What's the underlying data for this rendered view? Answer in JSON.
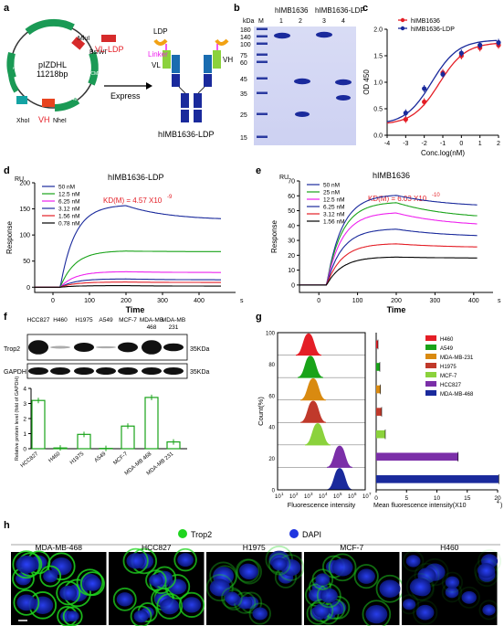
{
  "panels": {
    "a": "a",
    "b": "b",
    "c": "c",
    "d": "d",
    "e": "e",
    "f": "f",
    "g": "g",
    "h": "h"
  },
  "colors": {
    "red": "#e41e26",
    "blue": "#1a2a9c",
    "green": "#19a319",
    "magenta": "#ee22ee",
    "purple": "#7b2fa8",
    "black": "#000000",
    "dapi": "#1f35e0",
    "trop2": "#1fd51f"
  },
  "panel_a": {
    "plasmid_name": "pIZDHL",
    "plasmid_size": "11218bp",
    "features": [
      "PCMV",
      "PCMV",
      "PSV40",
      "PCMV-OnBu",
      "AmpR",
      "ColE1 ori"
    ],
    "sites": [
      "MluI",
      "BsiWI",
      "XhoI",
      "NheI"
    ],
    "insert_vl": "VL-LDP",
    "insert_vh": "VH",
    "express_label": "Express",
    "ldp_label": "LDP",
    "linker_label": "Linker",
    "vl_label": "VL",
    "vh_label": "VH",
    "antibody_name": "hIMB1636-LDP"
  },
  "panel_b": {
    "header_left": "hIMB1636",
    "header_right": "hIMB1636-LDP",
    "kda_label": "kDa",
    "m_label": "M",
    "lanes": [
      "1",
      "2",
      "3",
      "4"
    ],
    "markers": [
      "180",
      "140",
      "100",
      "75",
      "60",
      "45",
      "35",
      "25",
      "15"
    ]
  },
  "panel_c": {
    "chart_data": {
      "type": "scatter",
      "title": "",
      "xlabel": "Conc.log(nM)",
      "ylabel": "OD 450",
      "xlim": [
        -4,
        2
      ],
      "ylim": [
        0.0,
        2.0
      ],
      "xticks": [
        "-4",
        "-3",
        "-2",
        "-1",
        "0",
        "1",
        "2"
      ],
      "yticks": [
        "0.0",
        "0.5",
        "1.0",
        "1.5",
        "2.0"
      ],
      "legend_position": "top-left",
      "series": [
        {
          "name": "hIMB1636",
          "color": "#e41e26",
          "x": [
            -3,
            -2,
            -1,
            0,
            1,
            2
          ],
          "y": [
            0.3,
            0.63,
            1.18,
            1.5,
            1.65,
            1.7
          ]
        },
        {
          "name": "hIMB1636-LDP",
          "color": "#1a2a9c",
          "x": [
            -3,
            -2,
            -1,
            0,
            1,
            2
          ],
          "y": [
            0.42,
            0.88,
            1.15,
            1.55,
            1.7,
            1.75
          ]
        }
      ]
    }
  },
  "panel_d": {
    "chart_data": {
      "type": "line",
      "title": "hIMB1636-LDP",
      "kd": "KD(M) = 4.57 X10",
      "kd_exp": "-9",
      "xlabel": "Time",
      "ylabel": "Response",
      "unit_y": "RU",
      "unit_x": "s",
      "xlim": [
        -50,
        500
      ],
      "ylim": [
        -10,
        200
      ],
      "xticks": [
        "0",
        "100",
        "200",
        "300",
        "400"
      ],
      "yticks": [
        "0",
        "50",
        "100",
        "150",
        "200"
      ],
      "series": [
        {
          "name": "50 nM",
          "color": "#1a2a9c",
          "plateau": 158,
          "end": 128
        },
        {
          "name": "12.5 nM",
          "color": "#19a319",
          "plateau": 70,
          "end": 68
        },
        {
          "name": "6.25 nM",
          "color": "#ee22ee",
          "plateau": 30,
          "end": 28
        },
        {
          "name": "3.12 nM",
          "color": "#1a2a9c",
          "plateau": 16,
          "end": 14
        },
        {
          "name": "1.56 nM",
          "color": "#e41e26",
          "plateau": 10,
          "end": 9
        },
        {
          "name": "0.78 nM",
          "color": "#000000",
          "plateau": 3,
          "end": 2
        }
      ]
    }
  },
  "panel_e": {
    "chart_data": {
      "type": "line",
      "title": "hIMB1636",
      "kd": "KD(M) = 6.03 X10",
      "kd_exp": "-10",
      "xlabel": "Time",
      "ylabel": "Response",
      "unit_y": "RU",
      "unit_x": "s",
      "xlim": [
        -50,
        450
      ],
      "ylim": [
        -5,
        70
      ],
      "xticks": [
        "0",
        "100",
        "200",
        "300",
        "400"
      ],
      "yticks": [
        "0",
        "10",
        "20",
        "30",
        "40",
        "50",
        "60",
        "70"
      ],
      "series": [
        {
          "name": "50 nM",
          "color": "#1a2a9c",
          "plateau": 61,
          "end": 52
        },
        {
          "name": "25 nM",
          "color": "#19a319",
          "plateau": 56,
          "end": 44
        },
        {
          "name": "12.5 nM",
          "color": "#ee22ee",
          "plateau": 49,
          "end": 39
        },
        {
          "name": "6.25 nM",
          "color": "#1a2a9c",
          "plateau": 38,
          "end": 32
        },
        {
          "name": "3.12 nM",
          "color": "#e41e26",
          "plateau": 28,
          "end": 25
        },
        {
          "name": "1.56 nM",
          "color": "#000000",
          "plateau": 19,
          "end": 18
        }
      ]
    }
  },
  "panel_f": {
    "cell_lines": [
      "HCC827",
      "H460",
      "H1975",
      "A549",
      "MCF-7",
      "MDA-MB 468",
      "MDA-MB 231"
    ],
    "blot_labels": [
      "Trop2",
      "GAPDH"
    ],
    "kda": [
      "35KDa",
      "35KDa"
    ],
    "chart_data": {
      "type": "bar",
      "ylabel": "Relative protein level (fold of GAPDH)",
      "ylim": [
        0,
        4
      ],
      "yticks": [
        "0",
        "1",
        "2",
        "3",
        "4"
      ],
      "categories": [
        "HCC827",
        "H460",
        "H1975",
        "A549",
        "MCF-7",
        "MDA-MB 468",
        "MDA-MB 231"
      ],
      "values": [
        3.2,
        0.05,
        0.95,
        0.02,
        1.5,
        3.4,
        0.45
      ]
    }
  },
  "panel_g": {
    "histogram": {
      "xlabel": "Fluorescence intensity",
      "ylabel": "Count(%)",
      "yticks": [
        "0",
        "20",
        "40",
        "60",
        "80",
        "100"
      ],
      "xticks": [
        "10",
        "10",
        "10",
        "10",
        "10",
        "10",
        "10"
      ],
      "xexp": [
        "1",
        "2",
        "3",
        "4",
        "5",
        "6",
        "7"
      ]
    },
    "chart_data": {
      "type": "bar",
      "xlabel": "Mean fluorescence intensity(X10",
      "xexp": "4",
      "xlim": [
        0,
        20
      ],
      "xticks": [
        "0",
        "5",
        "10",
        "15",
        "20"
      ],
      "categories": [
        "H460",
        "A549",
        "MDA-MB-231",
        "H1975",
        "MCF-7",
        "HCC827",
        "MDA-MB-468"
      ],
      "colors": [
        "#e41e26",
        "#19a319",
        "#d98a10",
        "#c0392b",
        "#8bd23c",
        "#7b2fa8",
        "#1a2a9c"
      ],
      "values": [
        0.3,
        0.6,
        0.7,
        0.9,
        1.5,
        13.5,
        20.2
      ]
    }
  },
  "panel_h": {
    "legend": [
      "Trop2",
      "DAPI"
    ],
    "images": [
      "MDA-MB-468",
      "HCC827",
      "H1975",
      "MCF-7",
      "H460"
    ]
  }
}
